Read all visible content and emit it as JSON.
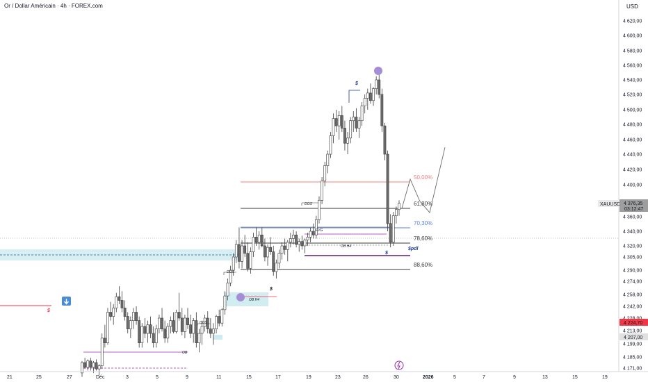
{
  "title": "Or / Dollar Américain · 4h · FOREX.com",
  "currency": "USD",
  "colors": {
    "up": "#ffffff",
    "down": "#6b6b6b",
    "wick": "#3a3a3a",
    "fib50": "#f08080",
    "fib618": "#3a3a3a",
    "fib703": "#5b7fd6",
    "fib786": "#3a3a3a",
    "fib886": "#3a3a3a",
    "zone": "#cdebf0",
    "purple": "#9c27b0",
    "dot": "#a48fd6",
    "current_price": "#9e9e9e",
    "red_price": "#f23645",
    "bluebox": "#4a8bd6"
  },
  "y_axis": {
    "ticks": [
      "4 620,00",
      "4 600,00",
      "4 580,00",
      "4 560,00",
      "4 540,00",
      "4 520,00",
      "4 500,00",
      "4 480,00",
      "4 460,00",
      "4 440,00",
      "4 420,00",
      "4 400,00",
      "4 360,00",
      "4 340,00",
      "4 320,00",
      "4 305,00",
      "4 290,00",
      "4 274,00",
      "4 258,00",
      "4 242,00",
      "4 228,00",
      "4 213,00",
      "4 199,00",
      "4 185,00",
      "4 171,00"
    ]
  },
  "x_axis": {
    "ticks": [
      "21",
      "25",
      "27",
      "Déc",
      "3",
      "5",
      "9",
      "11",
      "15",
      "17",
      "19",
      "23",
      "26",
      "30",
      "2026",
      "5",
      "7",
      "9",
      "13",
      "15",
      "19"
    ]
  },
  "price_labels": {
    "symbol": "XAUUSD",
    "current": "4 376,35",
    "countdown": "03:12:47",
    "red_level": "4 224,70",
    "grey_level": "4 207,00"
  },
  "fib": [
    {
      "label": "50,00%",
      "key": "fib50"
    },
    {
      "label": "61,80%",
      "key": "fib618"
    },
    {
      "label": "70,30%",
      "key": "fib703"
    },
    {
      "label": "78,60%",
      "key": "fib786"
    },
    {
      "label": "88,60%",
      "key": "fib886"
    }
  ],
  "annotations": {
    "dos": "DOS",
    "ob_h4": "OB H4",
    "fvg": "FVG",
    "ob_small": "OB",
    "dollar": "$",
    "spdl": "$pdl"
  },
  "chart_data": {
    "type": "candlestick",
    "title": "Or / Dollar Américain · 4h · FOREX.com",
    "ylabel": "USD",
    "ylim": [
      4165,
      4630
    ],
    "x_range": [
      "21 Nov",
      "19 Jan"
    ],
    "last_price": 4376.35,
    "fib_levels": {
      "50,00%": 4403,
      "61,80%": 4368,
      "70,30%": 4345,
      "78,60%": 4330,
      "88,60%": 4298
    },
    "candles": [
      [
        4165,
        4180,
        4160,
        4178
      ],
      [
        4178,
        4184,
        4170,
        4172
      ],
      [
        4172,
        4182,
        4168,
        4180
      ],
      [
        4180,
        4184,
        4168,
        4172
      ],
      [
        4172,
        4180,
        4165,
        4178
      ],
      [
        4178,
        4182,
        4168,
        4170
      ],
      [
        4170,
        4176,
        4162,
        4174
      ],
      [
        4174,
        4210,
        4170,
        4205
      ],
      [
        4205,
        4220,
        4195,
        4200
      ],
      [
        4200,
        4240,
        4198,
        4235
      ],
      [
        4235,
        4248,
        4225,
        4230
      ],
      [
        4230,
        4245,
        4220,
        4240
      ],
      [
        4240,
        4260,
        4235,
        4255
      ],
      [
        4255,
        4268,
        4245,
        4250
      ],
      [
        4250,
        4262,
        4235,
        4240
      ],
      [
        4240,
        4250,
        4225,
        4230
      ],
      [
        4230,
        4235,
        4210,
        4215
      ],
      [
        4215,
        4230,
        4205,
        4225
      ],
      [
        4225,
        4240,
        4215,
        4235
      ],
      [
        4235,
        4242,
        4220,
        4225
      ],
      [
        4225,
        4230,
        4195,
        4200
      ],
      [
        4200,
        4222,
        4195,
        4218
      ],
      [
        4218,
        4228,
        4205,
        4210
      ],
      [
        4210,
        4225,
        4200,
        4220
      ],
      [
        4220,
        4230,
        4205,
        4210
      ],
      [
        4210,
        4218,
        4195,
        4200
      ],
      [
        4200,
        4220,
        4195,
        4215
      ],
      [
        4215,
        4232,
        4210,
        4228
      ],
      [
        4228,
        4240,
        4212,
        4215
      ],
      [
        4215,
        4225,
        4200,
        4205
      ],
      [
        4205,
        4222,
        4200,
        4218
      ],
      [
        4218,
        4230,
        4210,
        4225
      ],
      [
        4225,
        4235,
        4210,
        4212
      ],
      [
        4212,
        4238,
        4210,
        4235
      ],
      [
        4235,
        4260,
        4225,
        4228
      ],
      [
        4228,
        4240,
        4208,
        4212
      ],
      [
        4212,
        4232,
        4205,
        4228
      ],
      [
        4228,
        4240,
        4215,
        4220
      ],
      [
        4220,
        4232,
        4205,
        4210
      ],
      [
        4210,
        4228,
        4200,
        4225
      ],
      [
        4225,
        4235,
        4195,
        4200
      ],
      [
        4200,
        4215,
        4190,
        4210
      ],
      [
        4210,
        4225,
        4198,
        4218
      ],
      [
        4218,
        4232,
        4212,
        4228
      ],
      [
        4228,
        4236,
        4210,
        4215
      ],
      [
        4215,
        4228,
        4205,
        4210
      ],
      [
        4210,
        4222,
        4198,
        4215
      ],
      [
        4215,
        4232,
        4210,
        4230
      ],
      [
        4230,
        4238,
        4218,
        4222
      ],
      [
        4222,
        4240,
        4218,
        4238
      ],
      [
        4238,
        4262,
        4232,
        4256
      ],
      [
        4256,
        4278,
        4250,
        4272
      ],
      [
        4272,
        4295,
        4268,
        4290
      ],
      [
        4290,
        4310,
        4282,
        4305
      ],
      [
        4305,
        4328,
        4298,
        4322
      ],
      [
        4322,
        4345,
        4292,
        4300
      ],
      [
        4300,
        4328,
        4292,
        4320
      ],
      [
        4320,
        4335,
        4305,
        4310
      ],
      [
        4310,
        4325,
        4288,
        4292
      ],
      [
        4292,
        4318,
        4285,
        4312
      ],
      [
        4312,
        4338,
        4305,
        4332
      ],
      [
        4332,
        4345,
        4320,
        4325
      ],
      [
        4325,
        4340,
        4315,
        4335
      ],
      [
        4335,
        4345,
        4318,
        4320
      ],
      [
        4320,
        4330,
        4300,
        4305
      ],
      [
        4305,
        4322,
        4295,
        4318
      ],
      [
        4318,
        4332,
        4308,
        4312
      ],
      [
        4312,
        4320,
        4282,
        4288
      ],
      [
        4288,
        4302,
        4278,
        4298
      ],
      [
        4298,
        4315,
        4292,
        4310
      ],
      [
        4310,
        4325,
        4302,
        4320
      ],
      [
        4320,
        4330,
        4308,
        4315
      ],
      [
        4315,
        4328,
        4300,
        4325
      ],
      [
        4325,
        4338,
        4318,
        4330
      ],
      [
        4330,
        4342,
        4322,
        4335
      ],
      [
        4335,
        4340,
        4318,
        4322
      ],
      [
        4322,
        4330,
        4312,
        4326
      ],
      [
        4326,
        4334,
        4315,
        4320
      ],
      [
        4320,
        4330,
        4310,
        4328
      ],
      [
        4328,
        4338,
        4320,
        4332
      ],
      [
        4332,
        4345,
        4325,
        4340
      ],
      [
        4340,
        4350,
        4330,
        4335
      ],
      [
        4335,
        4360,
        4330,
        4355
      ],
      [
        4355,
        4385,
        4350,
        4380
      ],
      [
        4380,
        4410,
        4375,
        4405
      ],
      [
        4405,
        4430,
        4398,
        4425
      ],
      [
        4425,
        4445,
        4415,
        4440
      ],
      [
        4440,
        4470,
        4435,
        4465
      ],
      [
        4465,
        4495,
        4455,
        4488
      ],
      [
        4488,
        4500,
        4470,
        4478
      ],
      [
        4478,
        4498,
        4460,
        4492
      ],
      [
        4492,
        4505,
        4470,
        4475
      ],
      [
        4475,
        4485,
        4445,
        4455
      ],
      [
        4455,
        4470,
        4440,
        4462
      ],
      [
        4462,
        4490,
        4455,
        4485
      ],
      [
        4485,
        4498,
        4470,
        4490
      ],
      [
        4490,
        4502,
        4470,
        4475
      ],
      [
        4475,
        4490,
        4462,
        4485
      ],
      [
        4485,
        4510,
        4478,
        4505
      ],
      [
        4505,
        4520,
        4495,
        4515
      ],
      [
        4515,
        4528,
        4500,
        4522
      ],
      [
        4522,
        4535,
        4508,
        4512
      ],
      [
        4512,
        4530,
        4505,
        4528
      ],
      [
        4528,
        4545,
        4520,
        4540
      ],
      [
        4540,
        4555,
        4515,
        4520
      ],
      [
        4520,
        4528,
        4470,
        4478
      ],
      [
        4478,
        4482,
        4432,
        4440
      ],
      [
        4440,
        4445,
        4340,
        4350
      ],
      [
        4350,
        4362,
        4318,
        4325
      ],
      [
        4325,
        4365,
        4320,
        4360
      ],
      [
        4360,
        4372,
        4350,
        4368
      ],
      [
        4368,
        4380,
        4360,
        4376
      ]
    ]
  }
}
